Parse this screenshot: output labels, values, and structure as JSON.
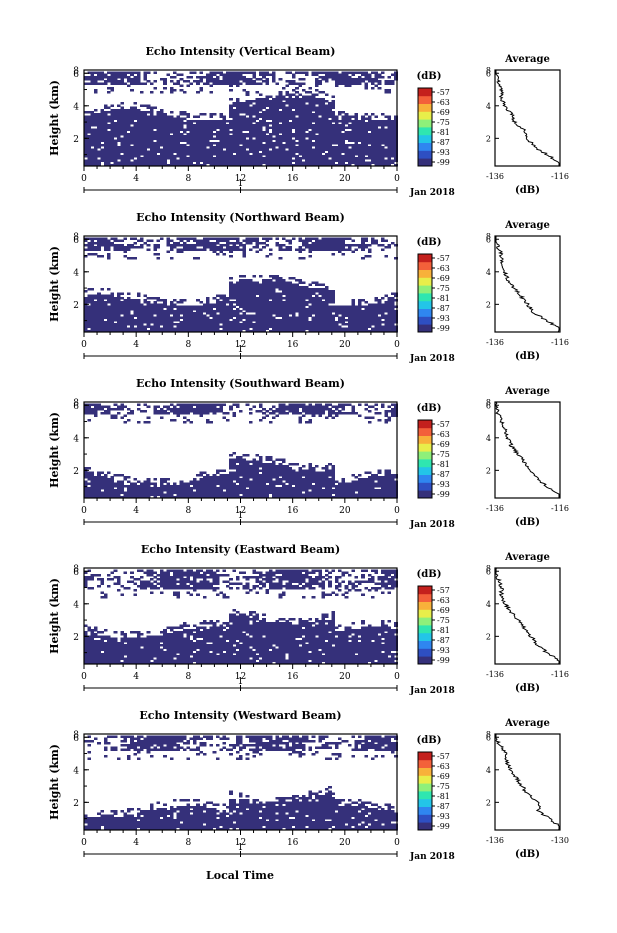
{
  "figure": {
    "xlabel": "Local Time",
    "date_label": "Jan 2018"
  },
  "colorbar": {
    "unit": "(dB)",
    "ticks": [
      "-57",
      "-63",
      "-69",
      "-75",
      "-81",
      "-87",
      "-93",
      "-99"
    ],
    "colors": [
      "#35307a",
      "#2e4fc2",
      "#2f86f0",
      "#23c5e8",
      "#2fe6b0",
      "#8ef07a",
      "#e8ee4a",
      "#f8b13a",
      "#f3603a",
      "#c4201d"
    ]
  },
  "chart_data": [
    {
      "type": "heatmap",
      "title": "Echo Intensity (Vertical Beam)",
      "ylabel": "Height (km)",
      "xlim": [
        0,
        24
      ],
      "ylim": [
        0.3,
        6.2
      ],
      "xticks": [
        "0",
        "4",
        "8",
        "12",
        "16",
        "20",
        "0"
      ],
      "yticks": [
        "2",
        "4",
        "6",
        "8"
      ],
      "day_tick": "1",
      "echo_color": "#35307a",
      "low_layer_top_km": 3.5,
      "upper_band_km": [
        5.4,
        6.2
      ],
      "average": {
        "title": "Average",
        "xlabel": "(dB)",
        "xticks": [
          "-136",
          "-116"
        ],
        "yticks": [
          "2",
          "4",
          "6",
          "8"
        ],
        "xlim": [
          -136,
          -116
        ],
        "ylim": [
          0.3,
          6.2
        ],
        "profile": [
          [
            0.5,
            -116
          ],
          [
            1,
            -120
          ],
          [
            1.5,
            -124
          ],
          [
            2,
            -126
          ],
          [
            2.5,
            -127
          ],
          [
            3,
            -130
          ],
          [
            3.5,
            -131
          ],
          [
            4,
            -133
          ],
          [
            4.5,
            -134
          ],
          [
            5,
            -134
          ],
          [
            5.5,
            -135
          ],
          [
            6,
            -136
          ]
        ]
      }
    },
    {
      "type": "heatmap",
      "title": "Echo Intensity (Northward Beam)",
      "ylabel": "Height (km)",
      "xlim": [
        0,
        24
      ],
      "ylim": [
        0.3,
        6.2
      ],
      "xticks": [
        "0",
        "4",
        "8",
        "12",
        "16",
        "20",
        "0"
      ],
      "yticks": [
        "2",
        "4",
        "6",
        "8"
      ],
      "day_tick": "1",
      "echo_color": "#35307a",
      "low_layer_top_km": 2.3,
      "upper_band_km": [
        5.4,
        6.2
      ],
      "average": {
        "title": "Average",
        "xlabel": "(dB)",
        "xticks": [
          "-136",
          "-116"
        ],
        "yticks": [
          "2",
          "4",
          "6",
          "8"
        ],
        "xlim": [
          -136,
          -116
        ],
        "ylim": [
          0.3,
          6.2
        ],
        "profile": [
          [
            0.5,
            -116
          ],
          [
            1,
            -120
          ],
          [
            1.5,
            -124
          ],
          [
            2,
            -126
          ],
          [
            2.5,
            -128
          ],
          [
            3,
            -130
          ],
          [
            3.5,
            -132
          ],
          [
            4,
            -133
          ],
          [
            4.5,
            -134
          ],
          [
            5,
            -134
          ],
          [
            5.5,
            -135
          ],
          [
            6,
            -136
          ]
        ]
      }
    },
    {
      "type": "heatmap",
      "title": "Echo Intensity (Southward Beam)",
      "ylabel": "Height (km)",
      "xlim": [
        0,
        24
      ],
      "ylim": [
        0.3,
        6.2
      ],
      "xticks": [
        "0",
        "4",
        "8",
        "12",
        "16",
        "20",
        "0"
      ],
      "yticks": [
        "2",
        "4",
        "6",
        "8"
      ],
      "day_tick": "1",
      "echo_color": "#35307a",
      "low_layer_top_km": 1.5,
      "upper_band_km": [
        5.5,
        6.2
      ],
      "average": {
        "title": "Average",
        "xlabel": "(dB)",
        "xticks": [
          "-136",
          "-116"
        ],
        "yticks": [
          "2",
          "4",
          "6",
          "8"
        ],
        "xlim": [
          -136,
          -116
        ],
        "ylim": [
          0.3,
          6.2
        ],
        "profile": [
          [
            0.5,
            -116
          ],
          [
            1,
            -120
          ],
          [
            1.5,
            -123
          ],
          [
            2,
            -125
          ],
          [
            2.5,
            -127
          ],
          [
            3,
            -129
          ],
          [
            3.5,
            -131
          ],
          [
            4,
            -132
          ],
          [
            4.5,
            -133
          ],
          [
            5,
            -134
          ],
          [
            5.5,
            -135
          ],
          [
            6,
            -136
          ]
        ]
      }
    },
    {
      "type": "heatmap",
      "title": "Echo Intensity (Eastward Beam)",
      "ylabel": "Height (km)",
      "xlim": [
        0,
        24
      ],
      "ylim": [
        0.3,
        6.2
      ],
      "xticks": [
        "0",
        "4",
        "8",
        "12",
        "16",
        "20",
        "0"
      ],
      "yticks": [
        "2",
        "4",
        "6",
        "8"
      ],
      "day_tick": "1",
      "echo_color": "#35307a",
      "low_layer_top_km": 2.3,
      "upper_band_km": [
        5.0,
        6.2
      ],
      "average": {
        "title": "Average",
        "xlabel": "(dB)",
        "xticks": [
          "-136",
          "-116"
        ],
        "yticks": [
          "2",
          "4",
          "6",
          "8"
        ],
        "xlim": [
          -136,
          -116
        ],
        "ylim": [
          0.3,
          6.2
        ],
        "profile": [
          [
            0.5,
            -116
          ],
          [
            1,
            -120
          ],
          [
            1.5,
            -123
          ],
          [
            2,
            -125
          ],
          [
            2.5,
            -127
          ],
          [
            3,
            -129
          ],
          [
            3.5,
            -131
          ],
          [
            4,
            -133
          ],
          [
            4.5,
            -134
          ],
          [
            5,
            -134
          ],
          [
            5.5,
            -135
          ],
          [
            6,
            -136
          ]
        ]
      }
    },
    {
      "type": "heatmap",
      "title": "Echo Intensity (Westward Beam)",
      "ylabel": "Height (km)",
      "xlim": [
        0,
        24
      ],
      "ylim": [
        0.3,
        6.2
      ],
      "xticks": [
        "0",
        "4",
        "8",
        "12",
        "16",
        "20",
        "0"
      ],
      "yticks": [
        "2",
        "4",
        "6",
        "8"
      ],
      "day_tick": "1",
      "echo_color": "#35307a",
      "low_layer_top_km": 1.5,
      "upper_band_km": [
        5.3,
        6.2
      ],
      "average": {
        "title": "Average",
        "xlabel": "(dB)",
        "xticks": [
          "-136",
          "-130"
        ],
        "yticks": [
          "2",
          "4",
          "6",
          "8"
        ],
        "xlim": [
          -136,
          -130
        ],
        "ylim": [
          0.3,
          6.2
        ],
        "profile": [
          [
            0.5,
            -130
          ],
          [
            1,
            -131
          ],
          [
            1.5,
            -132
          ],
          [
            2,
            -132
          ],
          [
            2.5,
            -133
          ],
          [
            3,
            -133.5
          ],
          [
            3.5,
            -134
          ],
          [
            4,
            -134.5
          ],
          [
            4.5,
            -135
          ],
          [
            5,
            -135
          ],
          [
            5.5,
            -135.5
          ],
          [
            6,
            -136
          ]
        ]
      }
    }
  ]
}
